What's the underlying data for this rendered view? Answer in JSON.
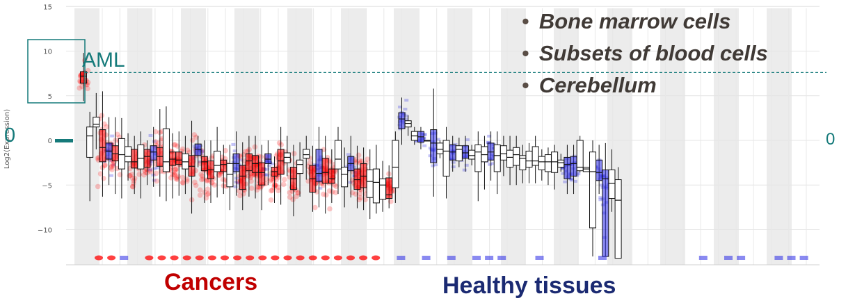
{
  "chart_data": {
    "type": "box",
    "ylabel": "Log2(Expression)",
    "ylim": [
      -14,
      15
    ],
    "yticks": [
      15,
      10,
      5,
      0,
      -5,
      -10
    ],
    "threshold": 7.6,
    "zero_marker": 0,
    "colors": {
      "cancer": "#ff0000",
      "healthy": "#2a2ae6",
      "annotation": "#157a7a",
      "band": "#ececec"
    },
    "cancers": [
      {
        "q1": 6.4,
        "median": 7.2,
        "q3": 7.7,
        "lo": 4.4,
        "hi": 9.8,
        "color": "red"
      },
      {
        "q1": -1.9,
        "median": 0.5,
        "q3": 1.5,
        "lo": -6.8,
        "hi": 3.2,
        "color": "white"
      },
      {
        "q1": 1.5,
        "median": 1.8,
        "q3": 2.6,
        "lo": -1.0,
        "hi": 5.3,
        "color": "white"
      },
      {
        "q1": -2.4,
        "median": -0.8,
        "q3": 1.2,
        "lo": -6.3,
        "hi": 5.5,
        "color": "red"
      },
      {
        "q1": -2.1,
        "median": -1.2,
        "q3": -0.3,
        "lo": -5.0,
        "hi": 2.6,
        "color": "blue"
      },
      {
        "q1": -2.3,
        "median": -1.5,
        "q3": -0.6,
        "lo": -6.0,
        "hi": 2.6,
        "color": "red"
      },
      {
        "q1": -3.2,
        "median": -1.6,
        "q3": 0.2,
        "lo": -6.5,
        "hi": 2.5,
        "color": "white"
      },
      {
        "q1": -2.4,
        "median": -1.8,
        "q3": -0.7,
        "lo": -4.5,
        "hi": 0.8,
        "color": "white"
      },
      {
        "q1": -3.1,
        "median": -2.4,
        "q3": -1.0,
        "lo": -6.0,
        "hi": 0.5,
        "color": "red"
      },
      {
        "q1": -3.2,
        "median": -2.0,
        "q3": -0.5,
        "lo": -6.5,
        "hi": 1.0,
        "color": "white"
      },
      {
        "q1": -3.0,
        "median": -1.8,
        "q3": -1.0,
        "lo": -5.0,
        "hi": 0.0,
        "color": "red"
      },
      {
        "q1": -2.2,
        "median": -1.3,
        "q3": -0.6,
        "lo": -5.2,
        "hi": 1.5,
        "color": "blue"
      },
      {
        "q1": -2.9,
        "median": -1.8,
        "q3": -0.8,
        "lo": -6.3,
        "hi": 3.5,
        "color": "red"
      },
      {
        "q1": -3.5,
        "median": -2.4,
        "q3": 1.3,
        "lo": -6.8,
        "hi": 3.8,
        "color": "white"
      },
      {
        "q1": -2.8,
        "median": -2.1,
        "q3": -1.3,
        "lo": -6.5,
        "hi": 0.8,
        "color": "red"
      },
      {
        "q1": -2.7,
        "median": -2.2,
        "q3": -1.3,
        "lo": -6.2,
        "hi": 1.0,
        "color": "red"
      },
      {
        "q1": -3.2,
        "median": -2.4,
        "q3": -1.5,
        "lo": -6.0,
        "hi": 0.5,
        "color": "white"
      },
      {
        "q1": -4.0,
        "median": -2.9,
        "q3": -1.7,
        "lo": -8.2,
        "hi": 2.2,
        "color": "red"
      },
      {
        "q1": -1.7,
        "median": -1.0,
        "q3": -0.4,
        "lo": -3.0,
        "hi": 0.5,
        "color": "blue"
      },
      {
        "q1": -3.4,
        "median": -2.4,
        "q3": -1.8,
        "lo": -7.0,
        "hi": 0.0,
        "color": "red"
      },
      {
        "q1": -4.3,
        "median": -3.3,
        "q3": -2.3,
        "lo": -7.0,
        "hi": 0.0,
        "color": "red"
      },
      {
        "q1": -3.5,
        "median": -2.8,
        "q3": -1.2,
        "lo": -6.4,
        "hi": 1.5,
        "color": "white"
      },
      {
        "q1": -3.5,
        "median": -2.7,
        "q3": -2.2,
        "lo": -6.0,
        "hi": -0.5,
        "color": "red"
      },
      {
        "q1": -5.2,
        "median": -3.8,
        "q3": -2.6,
        "lo": -7.8,
        "hi": -0.5,
        "color": "white"
      },
      {
        "q1": -3.5,
        "median": -2.6,
        "q3": -1.5,
        "lo": -6.2,
        "hi": 1.0,
        "color": "blue"
      },
      {
        "q1": -5.5,
        "median": -4.0,
        "q3": -2.8,
        "lo": -7.8,
        "hi": -0.2,
        "color": "red"
      },
      {
        "q1": -3.4,
        "median": -2.3,
        "q3": -1.5,
        "lo": -6.3,
        "hi": 0.5,
        "color": "red"
      },
      {
        "q1": -3.6,
        "median": -2.6,
        "q3": -1.7,
        "lo": -6.5,
        "hi": 0.5,
        "color": "red"
      },
      {
        "q1": -5.0,
        "median": -3.6,
        "q3": -2.5,
        "lo": -7.8,
        "hi": -0.5,
        "color": "red"
      },
      {
        "q1": -2.6,
        "median": -2.1,
        "q3": -1.5,
        "lo": -5.0,
        "hi": 0.0,
        "color": "blue"
      },
      {
        "q1": -4.0,
        "median": -3.5,
        "q3": -3.0,
        "lo": -7.0,
        "hi": -1.8,
        "color": "red"
      },
      {
        "q1": -3.8,
        "median": -2.3,
        "q3": -1.0,
        "lo": -7.2,
        "hi": 1.5,
        "color": "red"
      },
      {
        "q1": -2.5,
        "median": -1.9,
        "q3": -1.4,
        "lo": -4.0,
        "hi": 0.5,
        "color": "white"
      },
      {
        "q1": -5.5,
        "median": -4.3,
        "q3": -3.0,
        "lo": -8.5,
        "hi": -0.5,
        "color": "red"
      },
      {
        "q1": -3.7,
        "median": -2.7,
        "q3": -2.2,
        "lo": -6.3,
        "hi": -0.2,
        "color": "white"
      },
      {
        "q1": -2.0,
        "median": -1.6,
        "q3": -1.0,
        "lo": -4.4,
        "hi": 0.5,
        "color": "white"
      },
      {
        "q1": -5.8,
        "median": -4.3,
        "q3": -2.8,
        "lo": -8.0,
        "hi": -0.6,
        "color": "red"
      },
      {
        "q1": -4.6,
        "median": -3.7,
        "q3": -1.0,
        "lo": -7.5,
        "hi": 1.5,
        "color": "blue"
      },
      {
        "q1": -4.8,
        "median": -3.6,
        "q3": -2.0,
        "lo": -8.2,
        "hi": 0.5,
        "color": "red"
      },
      {
        "q1": -4.8,
        "median": -4.3,
        "q3": -3.2,
        "lo": -7.0,
        "hi": -1.0,
        "color": "red"
      },
      {
        "q1": -3.2,
        "median": -2.1,
        "q3": 0.0,
        "lo": -6.0,
        "hi": 1.5,
        "color": "white"
      },
      {
        "q1": -5.2,
        "median": -3.8,
        "q3": -3.0,
        "lo": -7.5,
        "hi": -0.8,
        "color": "white"
      },
      {
        "q1": -3.4,
        "median": -2.6,
        "q3": -1.8,
        "lo": -6.4,
        "hi": 0.5,
        "color": "blue"
      },
      {
        "q1": -5.5,
        "median": -4.4,
        "q3": -3.2,
        "lo": -7.6,
        "hi": -0.6,
        "color": "red"
      },
      {
        "q1": -5.3,
        "median": -4.0,
        "q3": -2.6,
        "lo": -7.8,
        "hi": -0.8,
        "color": "red"
      },
      {
        "q1": -6.4,
        "median": -4.6,
        "q3": -3.3,
        "lo": -8.8,
        "hi": -1.0,
        "color": "white"
      },
      {
        "q1": -7.0,
        "median": -4.7,
        "q3": -3.2,
        "lo": -8.2,
        "hi": -0.5,
        "color": "white"
      },
      {
        "q1": -6.6,
        "median": -5.0,
        "q3": -4.3,
        "lo": -8.0,
        "hi": -2.3,
        "color": "white"
      },
      {
        "q1": -6.5,
        "median": -6.1,
        "q3": -4.2,
        "lo": -7.6,
        "hi": -2.8,
        "color": "red"
      },
      {
        "q1": -5.3,
        "median": -3.0,
        "q3": 0.0,
        "lo": -7.0,
        "hi": 1.0,
        "color": "white"
      }
    ],
    "healthy": [
      {
        "q1": 1.3,
        "median": 2.4,
        "q3": 3.1,
        "lo": -0.5,
        "hi": 4.8,
        "color": "blue"
      },
      {
        "q1": 1.5,
        "median": 1.9,
        "q3": 2.2,
        "lo": 0.5,
        "hi": 2.8,
        "color": "white"
      },
      {
        "q1": 0.0,
        "median": 0.5,
        "q3": 1.0,
        "lo": -0.5,
        "hi": 1.5,
        "color": "white"
      },
      {
        "q1": -0.2,
        "median": 0.4,
        "q3": 1.0,
        "lo": -1.0,
        "hi": 1.5,
        "color": "blue"
      },
      {
        "q1": 0.0,
        "median": 0.0,
        "q3": 0.0,
        "lo": 0.0,
        "hi": 0.0,
        "color": "white"
      },
      {
        "q1": -2.5,
        "median": -0.3,
        "q3": 1.2,
        "lo": -6.3,
        "hi": 5.8,
        "color": "blue"
      },
      {
        "q1": -1.5,
        "median": -1.0,
        "q3": -0.3,
        "lo": -2.0,
        "hi": 0.0,
        "color": "white"
      },
      {
        "q1": -4.0,
        "median": -1.2,
        "q3": 0.0,
        "lo": -6.5,
        "hi": 1.5,
        "color": "white"
      },
      {
        "q1": -2.2,
        "median": -1.3,
        "q3": -0.5,
        "lo": -3.5,
        "hi": 0.5,
        "color": "blue"
      },
      {
        "q1": -2.3,
        "median": -1.0,
        "q3": -0.6,
        "lo": -3.0,
        "hi": 0.3,
        "color": "white"
      },
      {
        "q1": -2.0,
        "median": -1.4,
        "q3": -0.6,
        "lo": -3.5,
        "hi": 0.5,
        "color": "blue"
      },
      {
        "q1": -2.1,
        "median": -1.7,
        "q3": -1.1,
        "lo": -2.8,
        "hi": -0.5,
        "color": "white"
      },
      {
        "q1": -3.5,
        "median": -1.3,
        "q3": -0.5,
        "lo": -6.8,
        "hi": 1.0,
        "color": "white"
      },
      {
        "q1": -2.4,
        "median": -1.6,
        "q3": -0.7,
        "lo": -5.5,
        "hi": 0.5,
        "color": "white"
      },
      {
        "q1": -2.2,
        "median": -1.3,
        "q3": -0.3,
        "lo": -4.5,
        "hi": 1.0,
        "color": "blue"
      },
      {
        "q1": -3.5,
        "median": -1.7,
        "q3": -0.5,
        "lo": -6.0,
        "hi": 1.0,
        "color": "white"
      },
      {
        "q1": -2.2,
        "median": -1.5,
        "q3": -0.6,
        "lo": -4.0,
        "hi": 0.5,
        "color": "white"
      },
      {
        "q1": -3.0,
        "median": -1.9,
        "q3": -1.1,
        "lo": -5.0,
        "hi": 0.5,
        "color": "white"
      },
      {
        "q1": -2.8,
        "median": -1.6,
        "q3": -0.8,
        "lo": -5.0,
        "hi": 0.5,
        "color": "white"
      },
      {
        "q1": -3.3,
        "median": -2.0,
        "q3": -1.7,
        "lo": -4.8,
        "hi": -0.5,
        "color": "white"
      },
      {
        "q1": -3.0,
        "median": -2.3,
        "q3": -1.2,
        "lo": -4.8,
        "hi": -0.3,
        "color": "white"
      },
      {
        "q1": -2.8,
        "median": -2.3,
        "q3": -0.7,
        "lo": -4.8,
        "hi": 0.5,
        "color": "white"
      },
      {
        "q1": -3.3,
        "median": -2.4,
        "q3": -1.8,
        "lo": -4.5,
        "hi": -1.0,
        "color": "white"
      },
      {
        "q1": -3.5,
        "median": -2.4,
        "q3": -1.6,
        "lo": -5.0,
        "hi": -0.8,
        "color": "white"
      },
      {
        "q1": -3.6,
        "median": -2.4,
        "q3": -1.3,
        "lo": -5.5,
        "hi": -0.5,
        "color": "white"
      },
      {
        "q1": -3.0,
        "median": -2.5,
        "q3": -2.2,
        "lo": -3.5,
        "hi": -1.5,
        "color": "white"
      },
      {
        "q1": -4.3,
        "median": -2.7,
        "q3": -1.9,
        "lo": -6.0,
        "hi": -0.5,
        "color": "blue"
      },
      {
        "q1": -4.0,
        "median": -2.6,
        "q3": -1.8,
        "lo": -6.0,
        "hi": -0.5,
        "color": "blue"
      },
      {
        "q1": -3.4,
        "median": -3.0,
        "q3": 0.0,
        "lo": -3.6,
        "hi": 0.5,
        "color": "white"
      },
      {
        "q1": -3.5,
        "median": -3.2,
        "q3": -3.0,
        "lo": -3.5,
        "hi": -3.0,
        "color": "white"
      },
      {
        "q1": -9.8,
        "median": -3.5,
        "q3": -1.3,
        "lo": -13.0,
        "hi": 0.0,
        "color": "white"
      },
      {
        "q1": -4.5,
        "median": -3.6,
        "q3": -2.2,
        "lo": -6.0,
        "hi": -0.5,
        "color": "blue"
      },
      {
        "q1": -13.0,
        "median": -4.3,
        "q3": -3.3,
        "lo": -13.0,
        "hi": -0.3,
        "color": "blue"
      },
      {
        "q1": -6.5,
        "median": -4.8,
        "q3": -3.3,
        "lo": -8.0,
        "hi": -1.0,
        "color": "white"
      },
      {
        "q1": -13.2,
        "median": -6.7,
        "q3": -4.4,
        "lo": -13.2,
        "hi": -3.0,
        "color": "white"
      }
    ],
    "baseline_strip": [
      {
        "i": 0,
        "c": "red"
      },
      {
        "i": 1,
        "c": "red"
      },
      {
        "i": 2,
        "c": "blue"
      },
      {
        "i": 4,
        "c": "red"
      },
      {
        "i": 5,
        "c": "red"
      },
      {
        "i": 6,
        "c": "red"
      },
      {
        "i": 7,
        "c": "red"
      },
      {
        "i": 8,
        "c": "red"
      },
      {
        "i": 9,
        "c": "red"
      },
      {
        "i": 10,
        "c": "red"
      },
      {
        "i": 11,
        "c": "red"
      },
      {
        "i": 12,
        "c": "red"
      },
      {
        "i": 13,
        "c": "red"
      },
      {
        "i": 14,
        "c": "red"
      },
      {
        "i": 15,
        "c": "red"
      },
      {
        "i": 16,
        "c": "red"
      },
      {
        "i": 17,
        "c": "red"
      },
      {
        "i": 18,
        "c": "red"
      },
      {
        "i": 19,
        "c": "red"
      },
      {
        "i": 20,
        "c": "red"
      },
      {
        "i": 21,
        "c": "red"
      },
      {
        "i": 22,
        "c": "red"
      },
      {
        "i": 24,
        "c": "blue"
      },
      {
        "i": 26,
        "c": "blue"
      },
      {
        "i": 28,
        "c": "blue"
      },
      {
        "i": 30,
        "c": "blue"
      },
      {
        "i": 31,
        "c": "blue"
      },
      {
        "i": 32,
        "c": "blue"
      },
      {
        "i": 35,
        "c": "blue"
      },
      {
        "i": 40,
        "c": "blue"
      },
      {
        "i": 48,
        "c": "blue"
      },
      {
        "i": 50,
        "c": "blue"
      },
      {
        "i": 51,
        "c": "blue"
      },
      {
        "i": 54,
        "c": "blue"
      },
      {
        "i": 55,
        "c": "blue"
      },
      {
        "i": 56,
        "c": "blue"
      }
    ]
  },
  "annotations": {
    "aml_label": "AML",
    "zero_left": "0",
    "zero_right": "0",
    "bullets": [
      "Bone marrow cells",
      "Subsets of blood cells",
      "Cerebellum"
    ],
    "bullet_marker": "•",
    "cancers_label": "Cancers",
    "healthy_label": "Healthy tissues"
  }
}
